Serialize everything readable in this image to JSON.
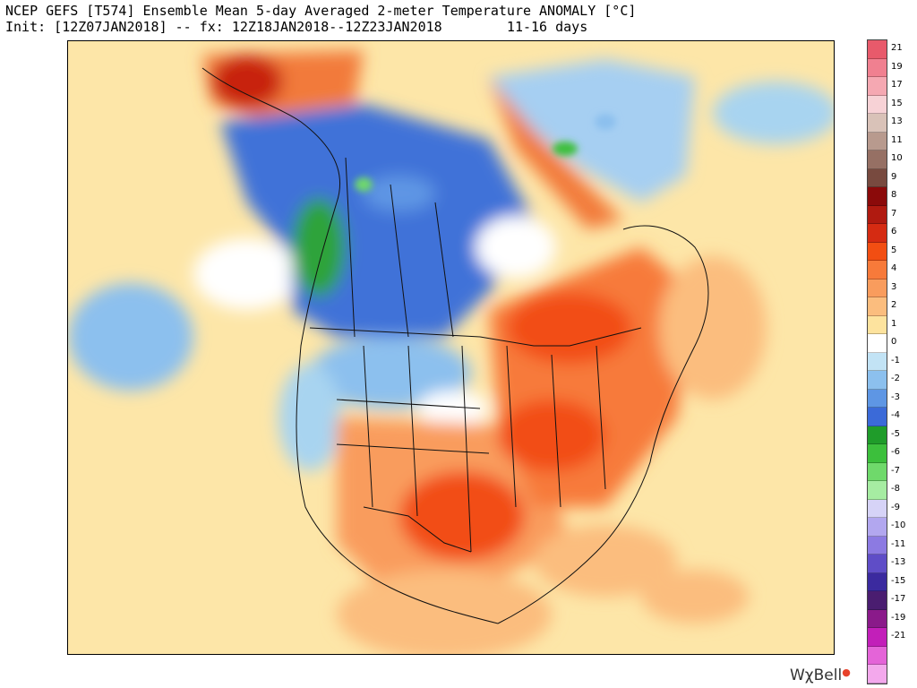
{
  "header": {
    "title": "NCEP GEFS [T574] Ensemble Mean 5-day Averaged 2-meter Temperature ANOMALY [°C]",
    "init_label": "Init: [12Z07JAN2018] -- fx: 12Z18JAN2018--12Z23JAN2018",
    "range_label": "11-16 days"
  },
  "map": {
    "region": "North America",
    "field": "2-meter temperature anomaly",
    "units": "°C",
    "warm_regions": [
      "Eastern United States",
      "Southern Plains",
      "Texas",
      "Southeastern Canada",
      "Gulf of Mexico coast",
      "Alaska north coast",
      "Western Greenland coast"
    ],
    "cold_regions": [
      "Western Canada",
      "British Columbia",
      "Yukon",
      "Nunavut",
      "Northern Plains",
      "Greenland interior",
      "Pacific Northwest"
    ]
  },
  "colorbar": {
    "labels": [
      "21",
      "19",
      "17",
      "15",
      "13",
      "11",
      "10",
      "9",
      "8",
      "7",
      "6",
      "5",
      "4",
      "3",
      "2",
      "1",
      "0",
      "-1",
      "-2",
      "-3",
      "-4",
      "-5",
      "-6",
      "-7",
      "-8",
      "-9",
      "-10",
      "-11",
      "-13",
      "-15",
      "-17",
      "-19",
      "-21"
    ],
    "colors": [
      "#e85a6b",
      "#f08090",
      "#f5a8b2",
      "#f7d2d6",
      "#d9c2b8",
      "#b89a8e",
      "#967064",
      "#784a3f",
      "#8b0a0a",
      "#b01a10",
      "#d52b12",
      "#f24e12",
      "#f77a3a",
      "#f99c5d",
      "#fbbd7e",
      "#fde39e",
      "#ffffff",
      "#c2e3f5",
      "#8cc0ee",
      "#5e96e4",
      "#3b6ad8",
      "#1f9c2a",
      "#3cbf3c",
      "#6fd96b",
      "#a6eca2",
      "#d6d3f7",
      "#b2a7ef",
      "#8c7ae2",
      "#5f4dc7",
      "#3b2a9f",
      "#4a1d70",
      "#8a1a8a",
      "#c21fb9",
      "#e464d8",
      "#f3a8ec"
    ]
  },
  "logo": {
    "text": "WχBell"
  }
}
